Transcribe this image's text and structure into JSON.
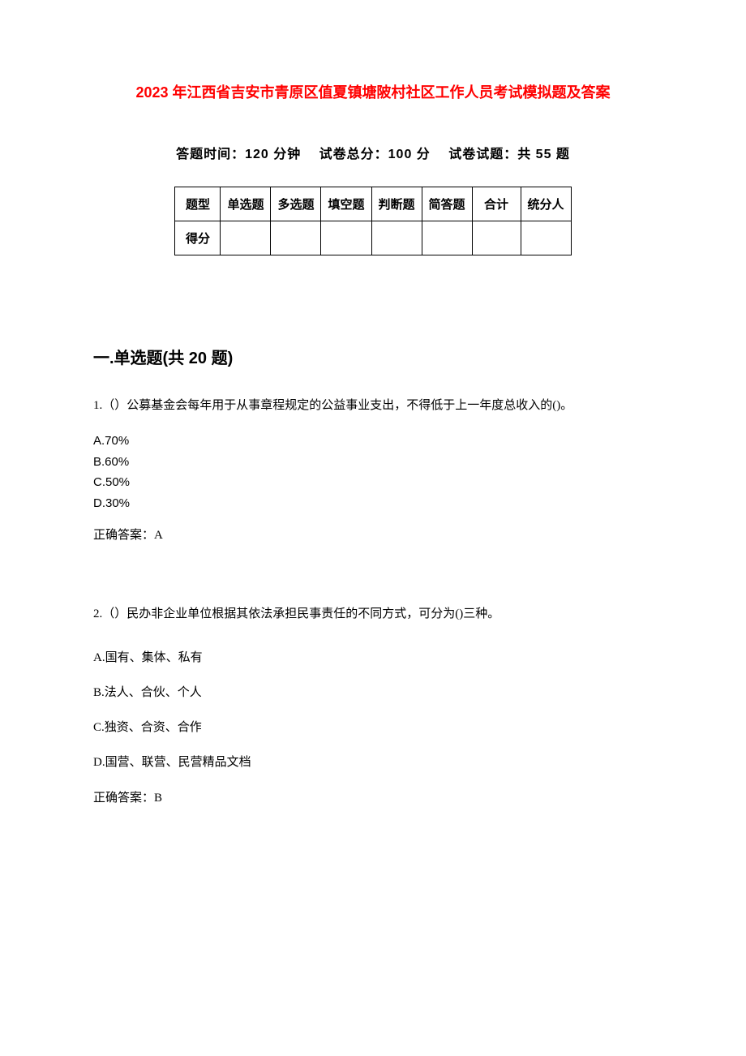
{
  "title": "2023 年江西省吉安市青原区值夏镇塘陂村社区工作人员考试模拟题及答案",
  "examInfo": "答题时间：120 分钟  试卷总分：100 分  试卷试题：共 55 题",
  "scoreTable": {
    "header": [
      "题型",
      "单选题",
      "多选题",
      "填空题",
      "判断题",
      "简答题",
      "合计",
      "统分人"
    ],
    "row2Label": "得分"
  },
  "section1": {
    "heading": "一.单选题(共 20 题)",
    "questions": [
      {
        "stem": "1.（）公募基金会每年用于从事章程规定的公益事业支出，不得低于上一年度总收入的()。",
        "options": [
          "A.70%",
          "B.60%",
          "C.50%",
          "D.30%"
        ],
        "answer": "正确答案：A",
        "style": "tight"
      },
      {
        "stem": "2.（）民办非企业单位根据其依法承担民事责任的不同方式，可分为()三种。",
        "options": [
          "A.国有、集体、私有",
          "B.法人、合伙、个人",
          "C.独资、合资、合作",
          "D.国营、联营、民营精品文档"
        ],
        "answer": "正确答案：B",
        "style": "loose"
      }
    ]
  },
  "colors": {
    "titleColor": "#ff0000",
    "textColor": "#000000",
    "background": "#ffffff",
    "borderColor": "#000000"
  },
  "fonts": {
    "titleSize": 18,
    "bodySize": 15,
    "headingSize": 20
  }
}
